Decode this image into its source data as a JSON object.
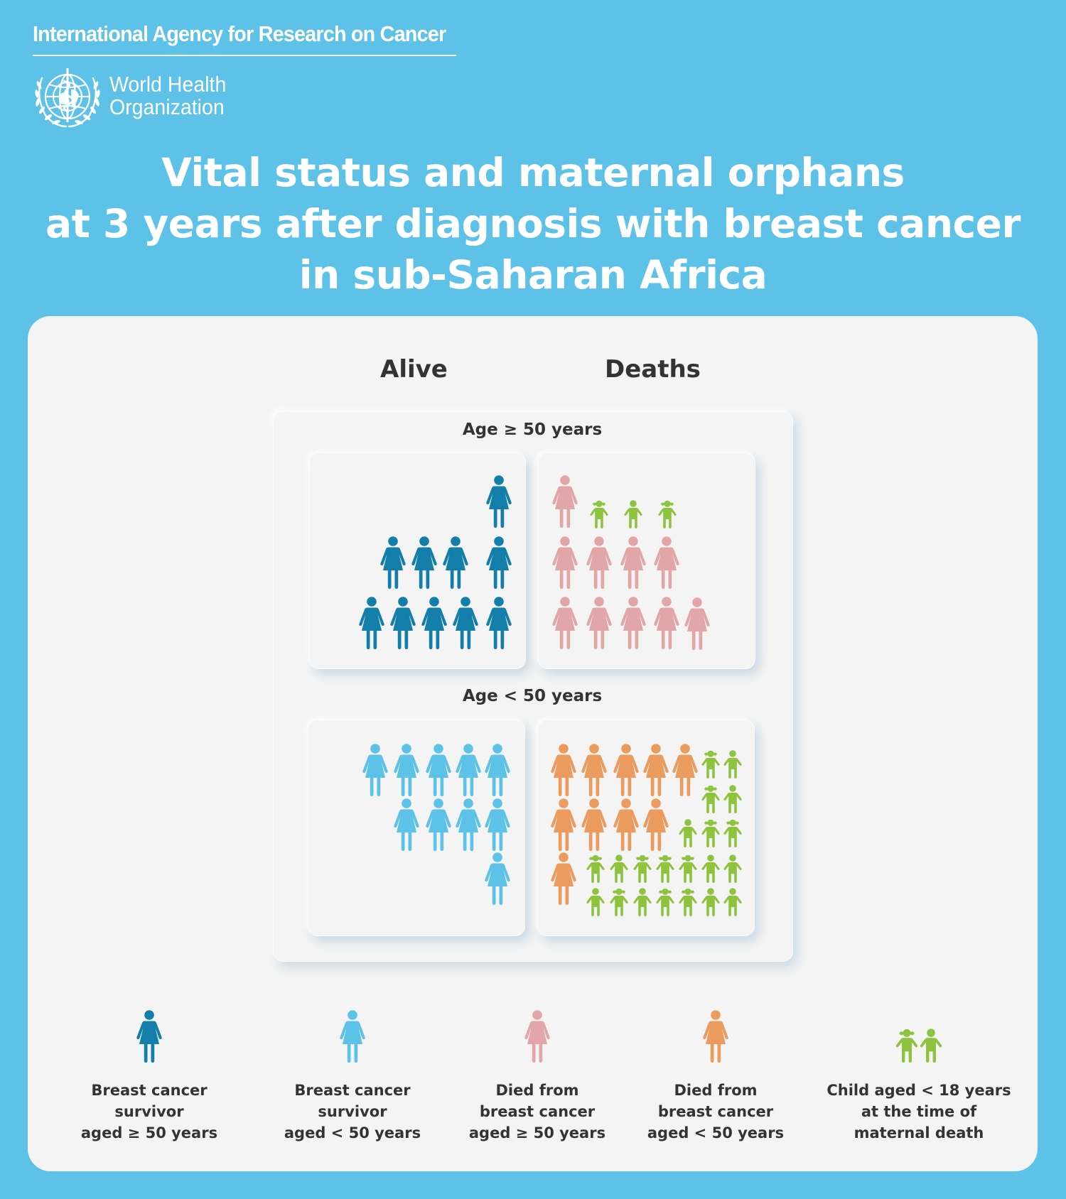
{
  "header": {
    "agency": "International Agency for Research on Cancer",
    "who_line1": "World Health",
    "who_line2": "Organization",
    "emblem_icon": "who-emblem-icon"
  },
  "title": {
    "line1": "Vital status and maternal orphans",
    "line2": "at 3 years after diagnosis with breast cancer",
    "line3": "in sub-Saharan Africa"
  },
  "columns": {
    "alive": "Alive",
    "deaths": "Deaths"
  },
  "groups": {
    "age_ge_50": {
      "label": "Age ≥ 50 years",
      "alive_survivors": 10,
      "deaths": 10,
      "orphans": 3
    },
    "age_lt_50": {
      "label": "Age < 50 years",
      "alive_survivors": 10,
      "deaths": 10,
      "orphans": 21
    }
  },
  "colors": {
    "survivor_ge_50": "#127ea9",
    "survivor_lt_50": "#5cc2e7",
    "died_ge_50": "#e3a6a8",
    "died_lt_50": "#ec9b5e",
    "child": "#8dc33f",
    "background": "#5dc1e8",
    "card": "#f4f4f4",
    "text": "#333333"
  },
  "legend": [
    {
      "key": "survivor_ge_50",
      "icon": "woman-icon",
      "line1": "Breast cancer survivor",
      "line2": "aged ≥ 50 years"
    },
    {
      "key": "survivor_lt_50",
      "icon": "woman-icon",
      "line1": "Breast cancer survivor",
      "line2": "aged < 50 years"
    },
    {
      "key": "died_ge_50",
      "icon": "woman-icon",
      "line1": "Died from",
      "line2": "breast cancer",
      "line3": "aged ≥ 50 years"
    },
    {
      "key": "died_lt_50",
      "icon": "woman-icon",
      "line1": "Died from",
      "line2": "breast cancer",
      "line3": "aged < 50 years"
    },
    {
      "key": "child",
      "icon": "children-icon",
      "line1": "Child aged < 18 years",
      "line2": "at the time of",
      "line3": "maternal death"
    }
  ]
}
